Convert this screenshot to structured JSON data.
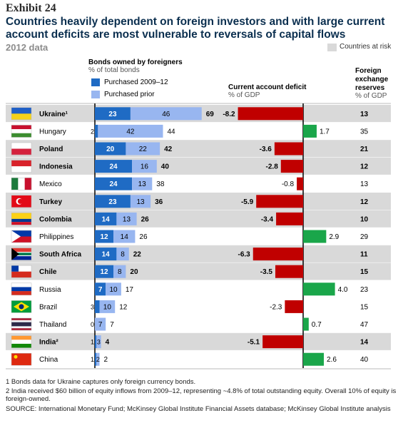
{
  "header": {
    "exhibit": "Exhibit 24",
    "title": "Countries heavily dependent on foreign investors and with large current account deficits are most vulnerable to reversals of capital flows",
    "subtitle": "2012 data",
    "risk_legend": "Countries at risk"
  },
  "columns": {
    "bonds_title": "Bonds owned by foreigners",
    "bonds_unit": "% of total bonds",
    "legend_recent": "Purchased 2009–12",
    "legend_prior": "Purchased prior",
    "cad_title": "Current account deficit",
    "cad_unit": "% of GDP",
    "fx_title": "Foreign exchange reserves",
    "fx_unit": "% of GDP"
  },
  "colors": {
    "recent": "#1f6bc4",
    "prior": "#98b6f0",
    "deficit": "#c00000",
    "surplus": "#1aa64a",
    "risk_band": "#d9d9d9",
    "flag_icons": "flag-icons"
  },
  "chart_data": {
    "type": "bar",
    "categories": [
      "Ukraine",
      "Hungary",
      "Poland",
      "Indonesia",
      "Mexico",
      "Turkey",
      "Colombia",
      "Philippines",
      "South Africa",
      "Chile",
      "Russia",
      "Brazil",
      "Thailand",
      "India",
      "China"
    ],
    "category_labels": [
      "Ukraine¹",
      "Hungary",
      "Poland",
      "Indonesia",
      "Mexico",
      "Turkey",
      "Colombia",
      "Philippines",
      "South Africa",
      "Chile",
      "Russia",
      "Brazil",
      "Thailand",
      "India²",
      "China"
    ],
    "at_risk": [
      true,
      false,
      true,
      true,
      false,
      true,
      true,
      false,
      true,
      true,
      false,
      false,
      false,
      true,
      false
    ],
    "series": [
      {
        "name": "Purchased 2009–12",
        "values": [
          23,
          2,
          20,
          24,
          24,
          23,
          14,
          12,
          14,
          12,
          7,
          3,
          0,
          1,
          1
        ]
      },
      {
        "name": "Purchased prior",
        "values": [
          46,
          42,
          22,
          16,
          13,
          13,
          13,
          14,
          8,
          8,
          10,
          10,
          7,
          3,
          2
        ]
      },
      {
        "name": "Current account deficit",
        "values": [
          -8.2,
          1.7,
          -3.6,
          -2.8,
          -0.8,
          -5.9,
          -3.4,
          2.9,
          -6.3,
          -3.5,
          4.0,
          -2.3,
          0.7,
          -5.1,
          2.6
        ]
      },
      {
        "name": "Foreign exchange reserves",
        "values": [
          13,
          35,
          21,
          12,
          13,
          12,
          10,
          29,
          11,
          15,
          23,
          15,
          47,
          14,
          40
        ]
      }
    ],
    "bond_totals": [
      69,
      44,
      42,
      40,
      38,
      36,
      26,
      26,
      22,
      20,
      17,
      12,
      7,
      4,
      2
    ],
    "cad_labels": [
      "-8.2",
      "1.7",
      "-3.6",
      "-2.8",
      "-0.8",
      "-5.9",
      "-3.4",
      "2.9",
      "-6.3",
      "-3.5",
      "4.0",
      "-2.3",
      "0.7",
      "-5.1",
      "2.6"
    ],
    "cad_range": [
      -8.5,
      4.5
    ]
  },
  "footnotes": {
    "fn1": "1  Bonds data for Ukraine captures only foreign currency bonds.",
    "fn2": "2  India received $60 billion of equity inflows from 2009–12, representing ~4.8% of total outstanding equity. Overall 10% of equity is foreign-owned.",
    "source": "SOURCE: International Monetary Fund; McKinsey Global Institute Financial Assets database; McKinsey Global Institute analysis"
  }
}
